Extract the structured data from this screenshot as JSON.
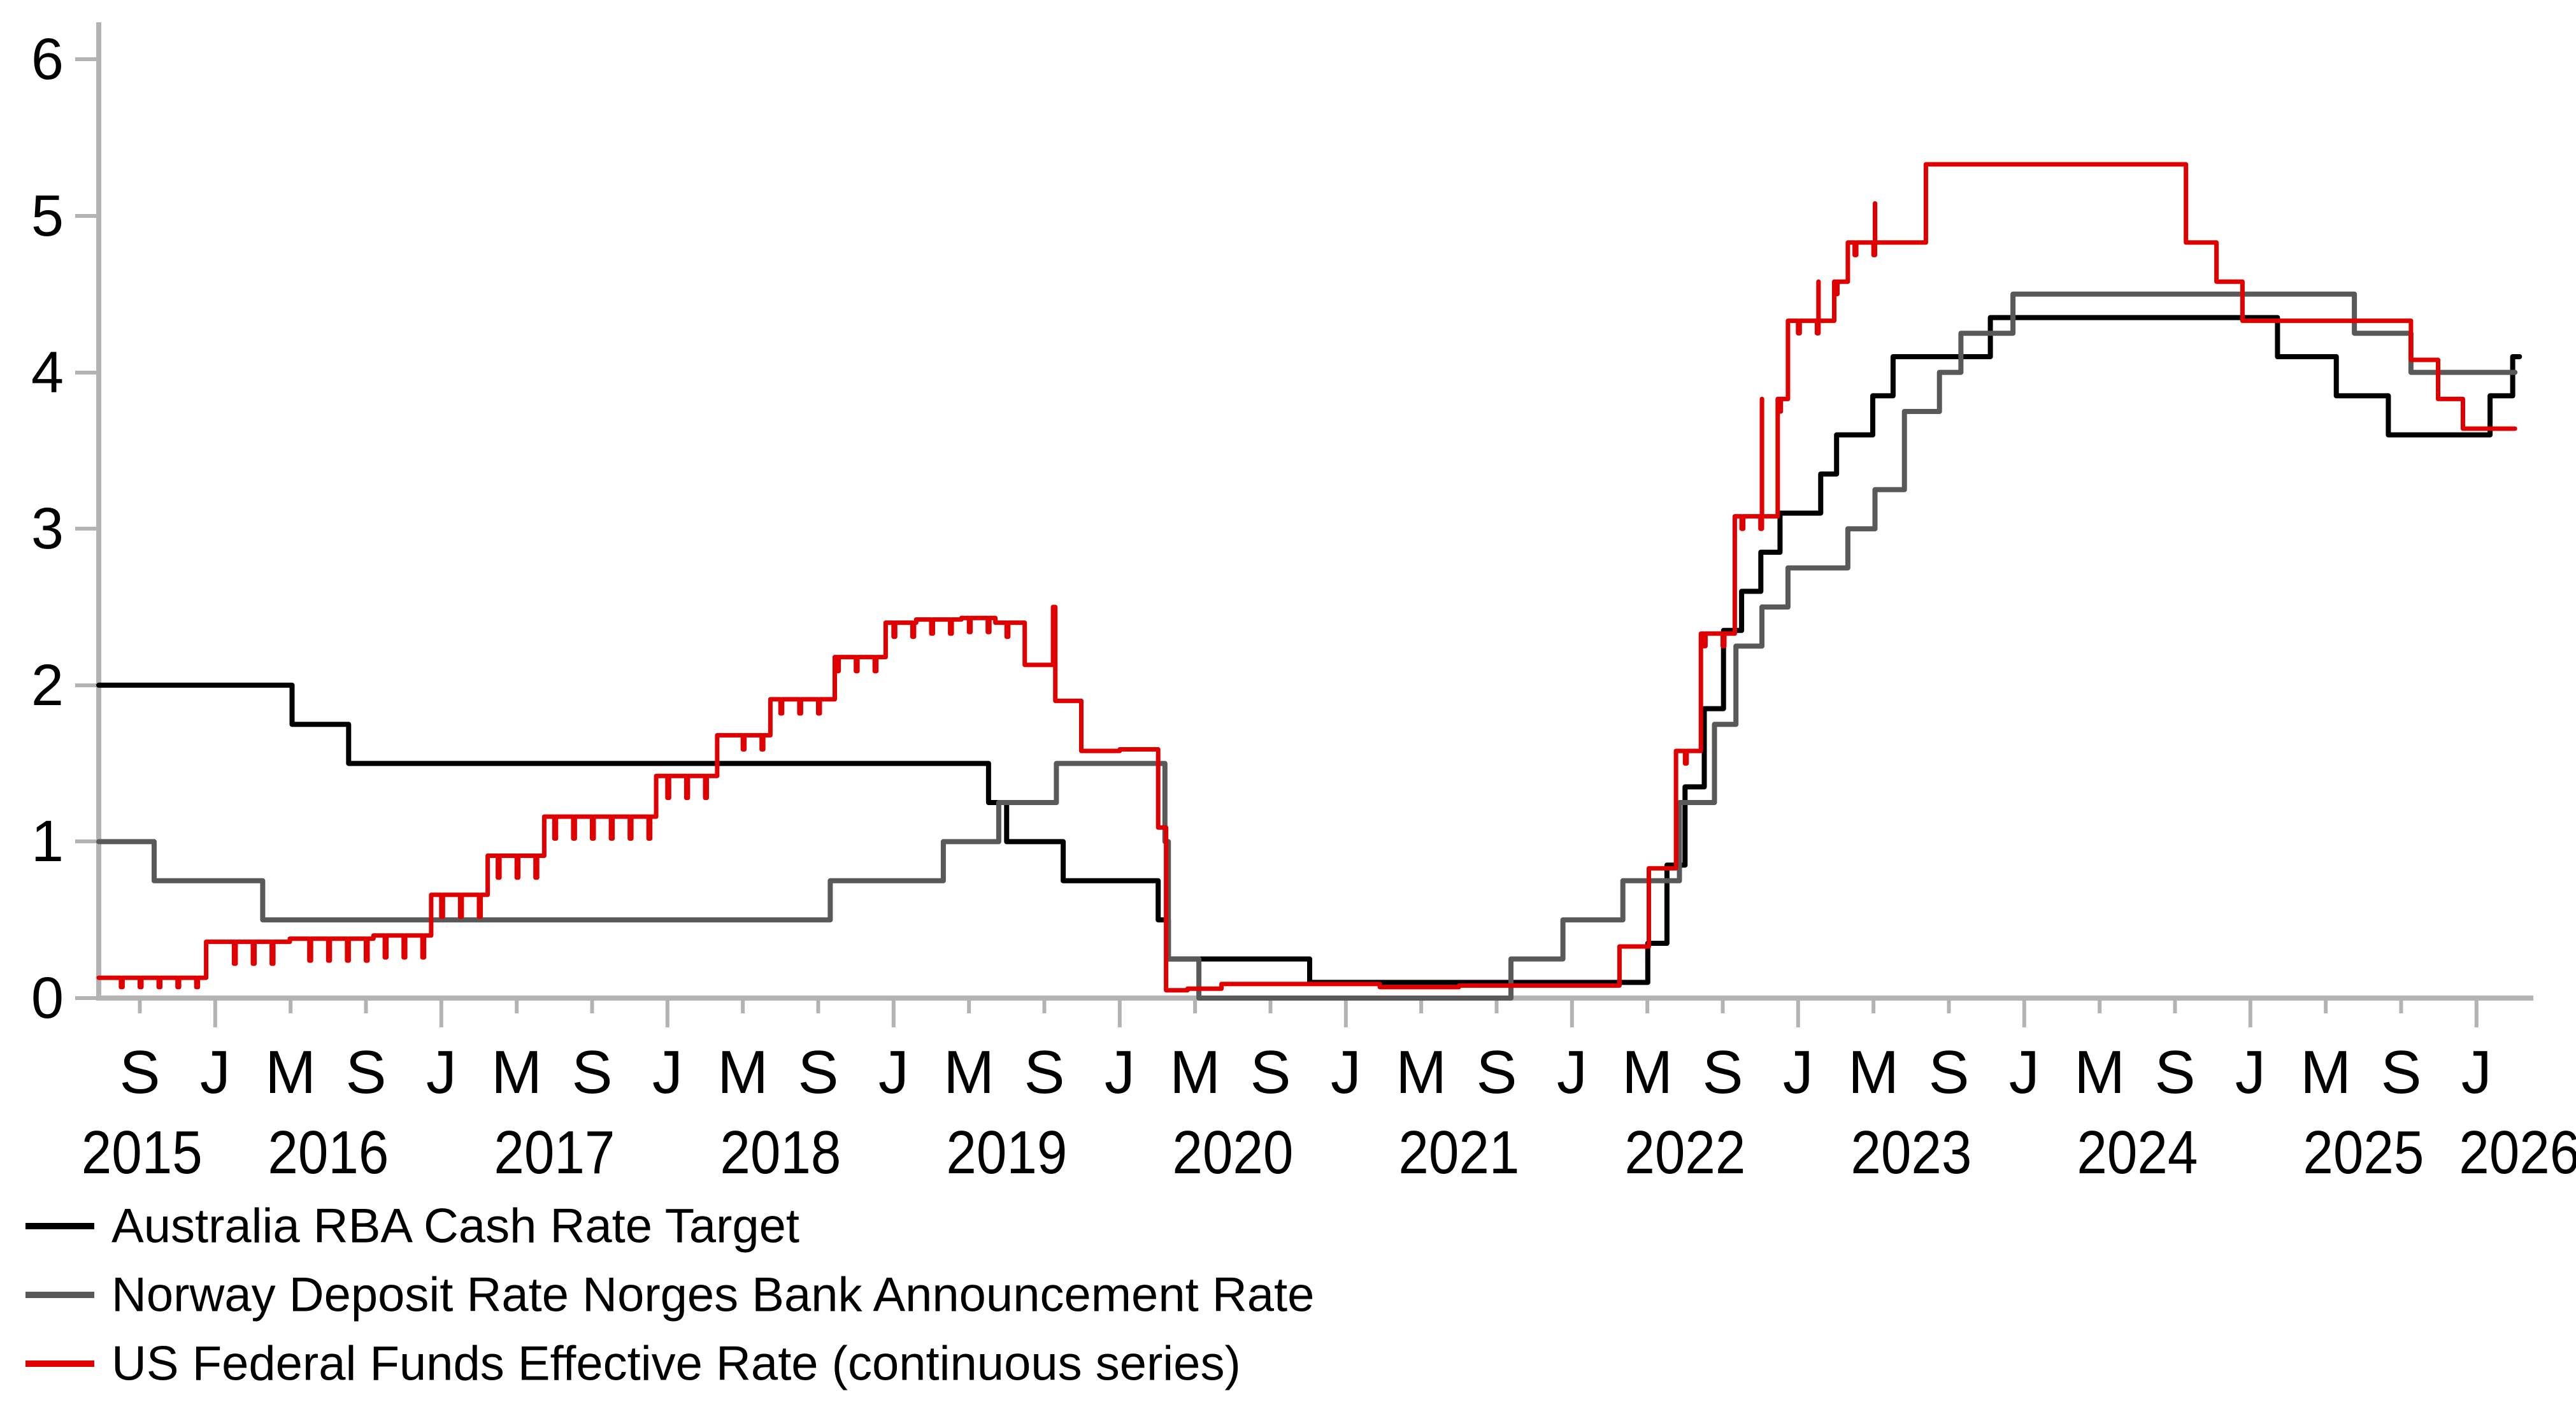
{
  "chart_data": {
    "type": "line",
    "title": "",
    "xlabel": "",
    "ylabel": "",
    "grid": false,
    "legend_position": "bottom-left",
    "xlim": [
      2015.485,
      2026.25
    ],
    "ylim": [
      0,
      6
    ],
    "y_ticks": [
      "0",
      "1",
      "2",
      "3",
      "4",
      "5",
      "6"
    ],
    "x_letter_start": 2015.6667,
    "x_letter_step": 0.33333,
    "x_letters": [
      "S",
      "J",
      "M",
      "S",
      "J",
      "M",
      "S",
      "J",
      "M",
      "S",
      "J",
      "M",
      "S",
      "J",
      "M",
      "S",
      "J",
      "M",
      "S",
      "J",
      "M",
      "S",
      "J",
      "M",
      "S",
      "J",
      "M",
      "S",
      "J",
      "M",
      "S",
      "J"
    ],
    "x_years": [
      {
        "label": "2015",
        "t": 2015.676
      },
      {
        "label": "2016",
        "t": 2016.5
      },
      {
        "label": "2017",
        "t": 2017.5
      },
      {
        "label": "2018",
        "t": 2018.5
      },
      {
        "label": "2019",
        "t": 2019.5
      },
      {
        "label": "2020",
        "t": 2020.5
      },
      {
        "label": "2021",
        "t": 2021.5
      },
      {
        "label": "2022",
        "t": 2022.5
      },
      {
        "label": "2023",
        "t": 2023.5
      },
      {
        "label": "2024",
        "t": 2024.5
      },
      {
        "label": "2025",
        "t": 2025.5
      },
      {
        "label": "2026",
        "t": 2026.19
      }
    ],
    "colors": {
      "axis": "#b3b3b3",
      "text": "#000000",
      "background": "#ffffff"
    },
    "series": [
      {
        "key": "australia-rba-cash-rate-target",
        "name": "Australia RBA Cash Rate Target",
        "color": "#000000",
        "width": 8,
        "end": 2026.19,
        "points": [
          [
            2015.485,
            2.0
          ],
          [
            2016.34,
            1.75
          ],
          [
            2016.59,
            1.5
          ],
          [
            2019.42,
            1.25
          ],
          [
            2019.5,
            1.0
          ],
          [
            2019.75,
            0.75
          ],
          [
            2020.17,
            0.5
          ],
          [
            2020.215,
            0.25
          ],
          [
            2020.84,
            0.1
          ],
          [
            2022.335,
            0.35
          ],
          [
            2022.42,
            0.85
          ],
          [
            2022.5,
            1.35
          ],
          [
            2022.585,
            1.85
          ],
          [
            2022.67,
            2.35
          ],
          [
            2022.75,
            2.6
          ],
          [
            2022.835,
            2.85
          ],
          [
            2022.92,
            3.1
          ],
          [
            2023.1,
            3.35
          ],
          [
            2023.17,
            3.6
          ],
          [
            2023.33,
            3.85
          ],
          [
            2023.42,
            4.1
          ],
          [
            2023.85,
            4.35
          ],
          [
            2025.12,
            4.1
          ],
          [
            2025.38,
            3.85
          ],
          [
            2025.61,
            3.6
          ],
          [
            2026.06,
            3.85
          ],
          [
            2026.16,
            4.1
          ]
        ]
      },
      {
        "key": "norway-deposit-rate",
        "name": "Norway Deposit Rate Norges Bank Announcement Rate",
        "color": "#595959",
        "width": 8,
        "end": 2026.17,
        "points": [
          [
            2015.485,
            1.0
          ],
          [
            2015.73,
            0.75
          ],
          [
            2016.21,
            0.5
          ],
          [
            2018.72,
            0.75
          ],
          [
            2019.22,
            1.0
          ],
          [
            2019.465,
            1.25
          ],
          [
            2019.72,
            1.5
          ],
          [
            2020.2,
            1.0
          ],
          [
            2020.215,
            0.25
          ],
          [
            2020.35,
            0.0
          ],
          [
            2021.73,
            0.25
          ],
          [
            2021.96,
            0.5
          ],
          [
            2022.225,
            0.75
          ],
          [
            2022.475,
            1.25
          ],
          [
            2022.63,
            1.75
          ],
          [
            2022.725,
            2.25
          ],
          [
            2022.84,
            2.5
          ],
          [
            2022.955,
            2.75
          ],
          [
            2023.22,
            3.0
          ],
          [
            2023.34,
            3.25
          ],
          [
            2023.47,
            3.75
          ],
          [
            2023.625,
            4.0
          ],
          [
            2023.72,
            4.25
          ],
          [
            2023.95,
            4.5
          ],
          [
            2025.46,
            4.25
          ],
          [
            2025.71,
            4.0
          ]
        ]
      },
      {
        "key": "us-federal-funds-effective-rate",
        "name": "US Federal Funds Effective Rate (continuous series)",
        "color": "#e10000",
        "width": 7,
        "end": 2026.17,
        "points": [
          [
            2015.485,
            0.13
          ],
          [
            2015.96,
            0.36
          ],
          [
            2016.33,
            0.38
          ],
          [
            2016.7,
            0.4
          ],
          [
            2016.955,
            0.66
          ],
          [
            2017.205,
            0.91
          ],
          [
            2017.455,
            1.16
          ],
          [
            2017.95,
            1.42
          ],
          [
            2018.22,
            1.68
          ],
          [
            2018.455,
            1.91
          ],
          [
            2018.74,
            2.18
          ],
          [
            2018.965,
            2.4
          ],
          [
            2019.1,
            2.42
          ],
          [
            2019.3,
            2.43
          ],
          [
            2019.45,
            2.4
          ],
          [
            2019.58,
            2.13
          ],
          [
            2019.705,
            2.5
          ],
          [
            2019.715,
            1.9
          ],
          [
            2019.83,
            1.58
          ],
          [
            2020.0,
            1.59
          ],
          [
            2020.17,
            1.09
          ],
          [
            2020.205,
            0.05
          ],
          [
            2020.3,
            0.06
          ],
          [
            2020.45,
            0.09
          ],
          [
            2020.9,
            0.09
          ],
          [
            2021.15,
            0.07
          ],
          [
            2021.5,
            0.08
          ],
          [
            2021.95,
            0.08
          ],
          [
            2022.21,
            0.33
          ],
          [
            2022.34,
            0.83
          ],
          [
            2022.46,
            1.58
          ],
          [
            2022.57,
            2.33
          ],
          [
            2022.72,
            3.08
          ],
          [
            2022.84,
            3.83
          ],
          [
            2022.955,
            4.33
          ],
          [
            2023.09,
            4.58
          ],
          [
            2023.22,
            4.83
          ],
          [
            2023.34,
            5.08
          ],
          [
            2023.565,
            5.33
          ],
          [
            2024.715,
            4.83
          ],
          [
            2024.85,
            4.58
          ],
          [
            2024.965,
            4.33
          ],
          [
            2025.71,
            4.08
          ],
          [
            2025.83,
            3.83
          ],
          [
            2025.94,
            3.64
          ]
        ],
        "texture": [
          {
            "from": 2015.55,
            "to": 2015.93,
            "depth": 0.06
          },
          {
            "from": 2016.02,
            "to": 2018.2,
            "depth": 0.14
          },
          {
            "from": 2018.3,
            "to": 2019.55,
            "depth": 0.09
          },
          {
            "from": 2022.5,
            "to": 2023.4,
            "depth": 0.08
          }
        ]
      }
    ]
  }
}
